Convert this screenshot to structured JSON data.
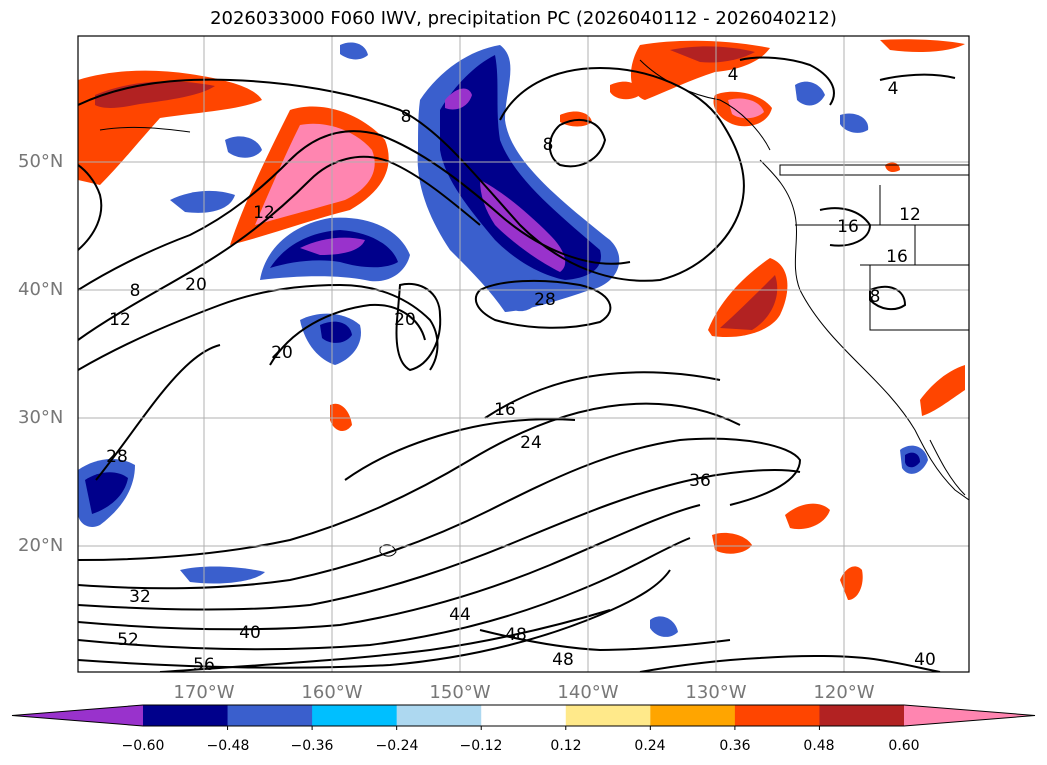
{
  "title": "2026033000 F060 IWV, precipitation PC (2026040112 - 2026040212)",
  "lat_labels": [
    "50°N",
    "40°N",
    "30°N",
    "20°N"
  ],
  "lon_labels": [
    "170°W",
    "160°W",
    "150°W",
    "140°W",
    "130°W",
    "120°W"
  ],
  "colorbar": {
    "ticks": [
      "−0.60",
      "−0.48",
      "−0.36",
      "−0.24",
      "−0.12",
      "0.12",
      "0.24",
      "0.36",
      "0.48",
      "0.60"
    ],
    "colors": [
      "#9932cc",
      "#00008b",
      "#3a5fcd",
      "#00bfff",
      "#add8f0",
      "#ffffff",
      "#ffe98a",
      "#ffa500",
      "#ff4500",
      "#b22222",
      "#ff85b0"
    ]
  },
  "contour_labels": [
    "4",
    "4",
    "8",
    "8",
    "12",
    "12",
    "16",
    "16",
    "16",
    "20",
    "20",
    "20",
    "24",
    "28",
    "28",
    "32",
    "36",
    "40",
    "40",
    "44",
    "48",
    "48",
    "52",
    "56",
    "8",
    "8",
    "12"
  ]
}
